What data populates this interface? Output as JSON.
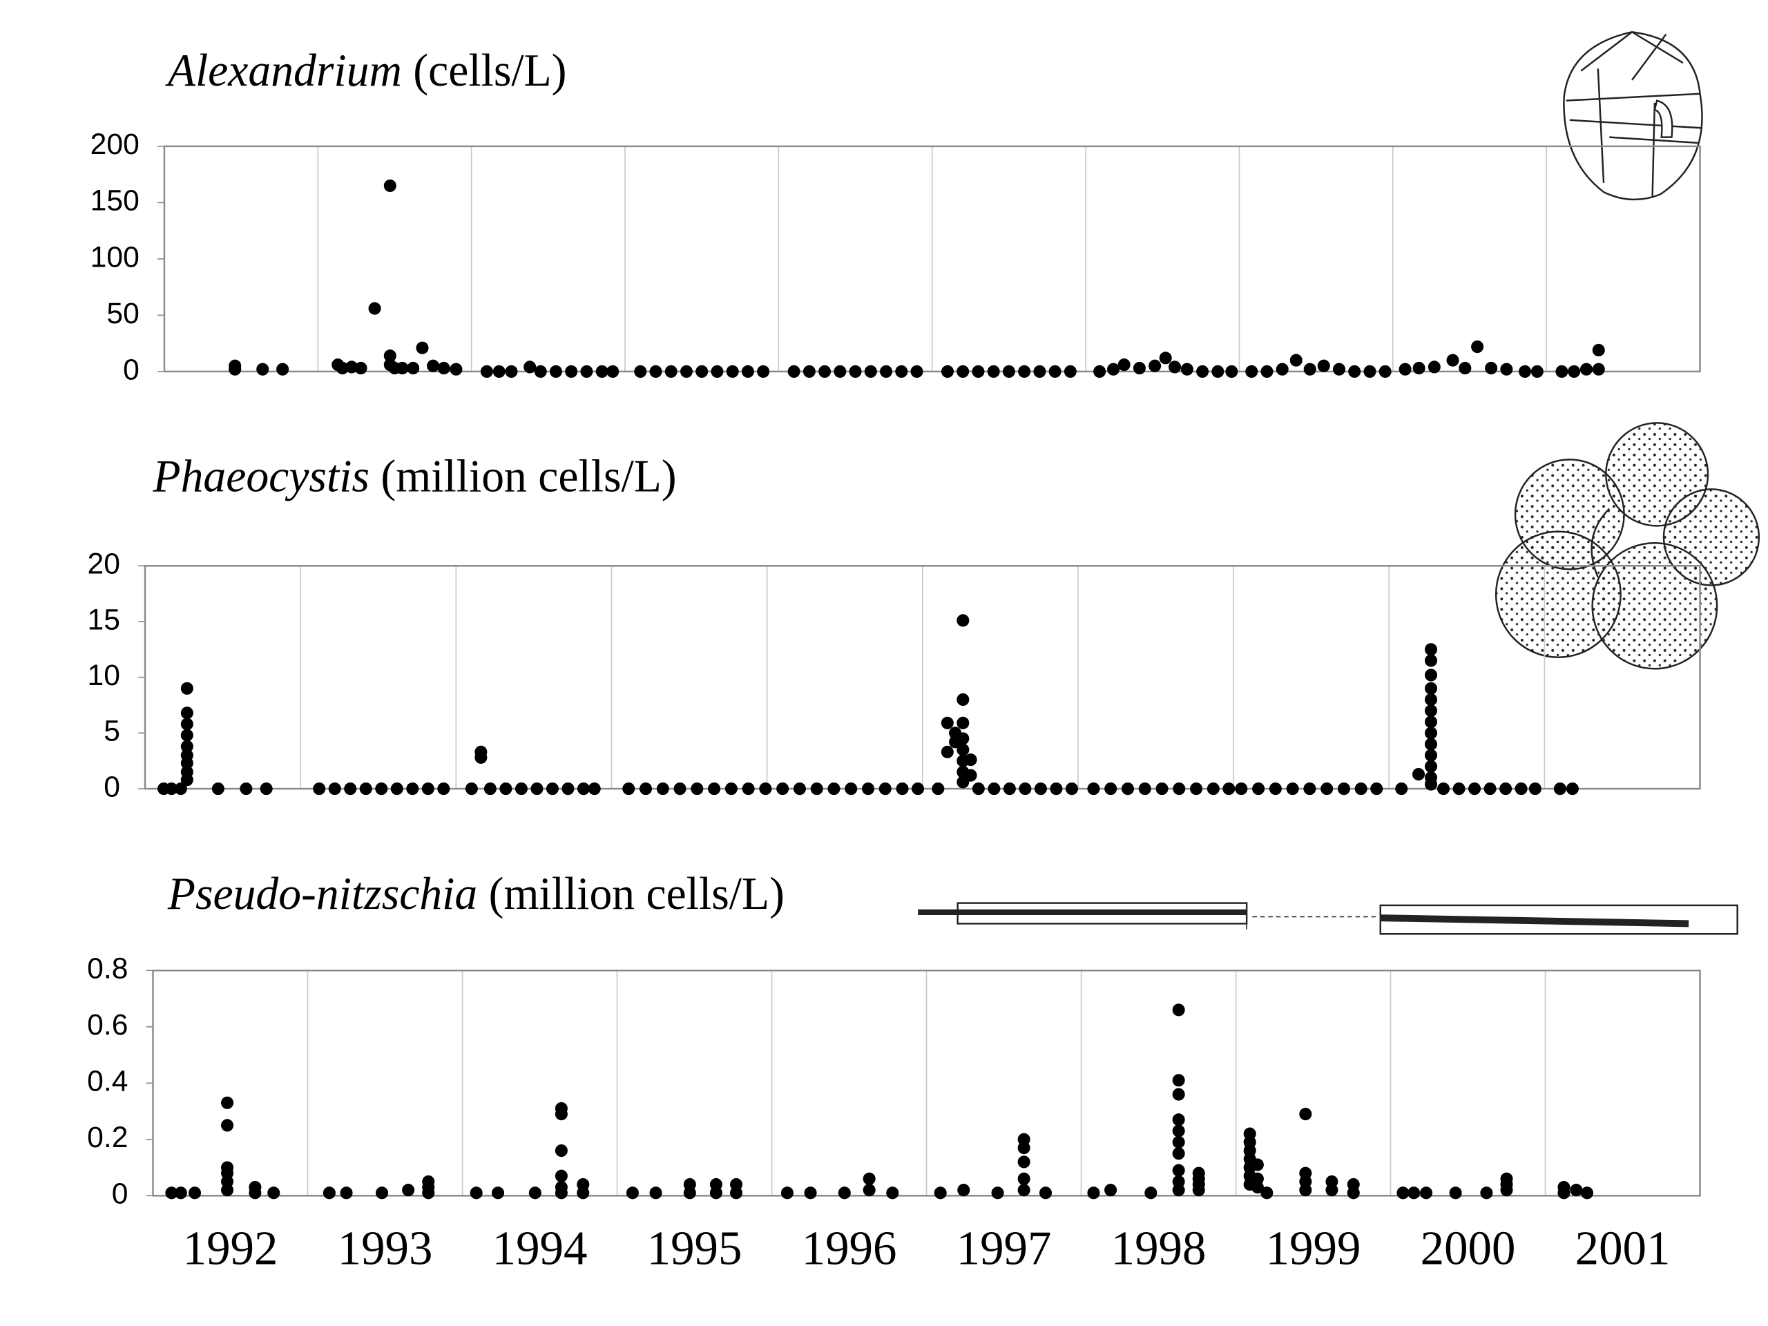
{
  "chart_data": [
    {
      "type": "scatter",
      "title": {
        "taxon": "Alexandrium",
        "unit": "(cells/L)"
      },
      "xlim": [
        1992,
        2002
      ],
      "xgrid": [
        1993,
        1994,
        1995,
        1996,
        1997,
        1998,
        1999,
        2000,
        2001
      ],
      "ylim": [
        0,
        200
      ],
      "yticks": [
        0,
        50,
        100,
        150,
        200
      ],
      "color": "#000000",
      "x": [
        1992.46,
        1992.46,
        1992.64,
        1992.77,
        1993.13,
        1993.16,
        1993.22,
        1993.28,
        1993.37,
        1993.47,
        1993.47,
        1993.47,
        1993.5,
        1993.55,
        1993.62,
        1993.68,
        1993.75,
        1993.82,
        1993.9,
        1994.1,
        1994.18,
        1994.26,
        1994.38,
        1994.45,
        1994.55,
        1994.65,
        1994.75,
        1994.85,
        1994.92,
        1995.1,
        1995.2,
        1995.3,
        1995.4,
        1995.5,
        1995.6,
        1995.7,
        1995.8,
        1995.9,
        1996.1,
        1996.2,
        1996.3,
        1996.4,
        1996.5,
        1996.6,
        1996.7,
        1996.8,
        1996.9,
        1997.1,
        1997.2,
        1997.3,
        1997.4,
        1997.5,
        1997.6,
        1997.7,
        1997.8,
        1997.9,
        1998.09,
        1998.18,
        1998.25,
        1998.35,
        1998.45,
        1998.52,
        1998.58,
        1998.66,
        1998.76,
        1998.86,
        1998.95,
        1999.08,
        1999.18,
        1999.28,
        1999.37,
        1999.46,
        1999.55,
        1999.65,
        1999.75,
        1999.85,
        1999.95,
        2000.08,
        2000.17,
        2000.27,
        2000.39,
        2000.47,
        2000.55,
        2000.64,
        2000.74,
        2000.86,
        2000.94,
        2001.1,
        2001.18,
        2001.26,
        2001.34,
        2001.34
      ],
      "values": [
        5,
        2,
        2,
        2,
        6,
        3,
        4,
        3,
        56,
        165,
        14,
        6,
        3,
        3,
        3,
        21,
        5,
        3,
        2,
        0,
        0,
        0,
        4,
        0,
        0,
        0,
        0,
        0,
        0,
        0,
        0,
        0,
        0,
        0,
        0,
        0,
        0,
        0,
        0,
        0,
        0,
        0,
        0,
        0,
        0,
        0,
        0,
        0,
        0,
        0,
        0,
        0,
        0,
        0,
        0,
        0,
        0,
        2,
        6,
        3,
        5,
        12,
        4,
        2,
        0,
        0,
        0,
        0,
        0,
        2,
        10,
        2,
        5,
        2,
        0,
        0,
        0,
        2,
        3,
        4,
        10,
        3,
        22,
        3,
        2,
        0,
        0,
        0,
        0,
        2,
        19,
        2
      ]
    },
    {
      "type": "scatter",
      "title": {
        "taxon": "Phaeocystis",
        "unit": "(million cells/L)"
      },
      "xlim": [
        1992,
        2002
      ],
      "xgrid": [
        1993,
        1994,
        1995,
        1996,
        1997,
        1998,
        1999,
        2000,
        2001
      ],
      "ylim": [
        0,
        20
      ],
      "yticks": [
        0,
        5,
        10,
        15,
        20
      ],
      "color": "#000000",
      "x": [
        1992.12,
        1992.17,
        1992.23,
        1992.27,
        1992.27,
        1992.27,
        1992.27,
        1992.27,
        1992.27,
        1992.27,
        1992.27,
        1992.27,
        1992.47,
        1992.65,
        1992.78,
        1993.12,
        1993.22,
        1993.32,
        1993.42,
        1993.52,
        1993.62,
        1993.72,
        1993.82,
        1993.92,
        1994.1,
        1994.16,
        1994.16,
        1994.22,
        1994.32,
        1994.42,
        1994.52,
        1994.62,
        1994.72,
        1994.82,
        1994.89,
        1995.11,
        1995.22,
        1995.33,
        1995.44,
        1995.55,
        1995.66,
        1995.77,
        1995.88,
        1995.99,
        1996.1,
        1996.21,
        1996.32,
        1996.43,
        1996.54,
        1996.65,
        1996.76,
        1996.87,
        1996.97,
        1997.1,
        1997.16,
        1997.16,
        1997.21,
        1997.21,
        1997.26,
        1997.26,
        1997.26,
        1997.26,
        1997.26,
        1997.26,
        1997.26,
        1997.26,
        1997.31,
        1997.31,
        1997.36,
        1997.46,
        1997.56,
        1997.66,
        1997.76,
        1997.86,
        1997.96,
        1998.1,
        1998.21,
        1998.32,
        1998.43,
        1998.54,
        1998.65,
        1998.76,
        1998.87,
        1998.97,
        1999.05,
        1999.16,
        1999.27,
        1999.38,
        1999.49,
        1999.6,
        1999.71,
        1999.82,
        1999.92,
        2000.08,
        2000.19,
        2000.27,
        2000.27,
        2000.27,
        2000.27,
        2000.27,
        2000.27,
        2000.27,
        2000.27,
        2000.27,
        2000.27,
        2000.27,
        2000.27,
        2000.27,
        2000.35,
        2000.45,
        2000.55,
        2000.65,
        2000.75,
        2000.85,
        2000.94,
        2001.1,
        2001.18
      ],
      "values": [
        0,
        0,
        0,
        9,
        6.8,
        5.8,
        4.8,
        3.8,
        3,
        2.3,
        1.5,
        0.8,
        0,
        0,
        0,
        0,
        0,
        0,
        0,
        0,
        0,
        0,
        0,
        0,
        0,
        3.3,
        2.8,
        0,
        0,
        0,
        0,
        0,
        0,
        0,
        0,
        0,
        0,
        0,
        0,
        0,
        0,
        0,
        0,
        0,
        0,
        0,
        0,
        0,
        0,
        0,
        0,
        0,
        0,
        0,
        5.9,
        3.3,
        5,
        4.2,
        15.1,
        8,
        5.9,
        4.5,
        3.5,
        2.5,
        1.5,
        0.6,
        2.6,
        1.2,
        0,
        0,
        0,
        0,
        0,
        0,
        0,
        0,
        0,
        0,
        0,
        0,
        0,
        0,
        0,
        0,
        0,
        0,
        0,
        0,
        0,
        0,
        0,
        0,
        0,
        0,
        1.3,
        12.5,
        11.5,
        10.2,
        9,
        8,
        7,
        6,
        5,
        4,
        3,
        2,
        1,
        0.4,
        0,
        0,
        0,
        0,
        0,
        0,
        0,
        0,
        0
      ]
    },
    {
      "type": "scatter",
      "title": {
        "taxon": "Pseudo-nitzschia",
        "unit": "(million cells/L)"
      },
      "xlim": [
        1992,
        2002
      ],
      "xgrid": [
        1993,
        1994,
        1995,
        1996,
        1997,
        1998,
        1999,
        2000,
        2001
      ],
      "xticks": [
        {
          "value": 1992.5,
          "label": "1992"
        },
        {
          "value": 1993.5,
          "label": "1993"
        },
        {
          "value": 1994.5,
          "label": "1994"
        },
        {
          "value": 1995.5,
          "label": "1995"
        },
        {
          "value": 1996.5,
          "label": "1996"
        },
        {
          "value": 1997.5,
          "label": "1997"
        },
        {
          "value": 1998.5,
          "label": "1998"
        },
        {
          "value": 1999.5,
          "label": "1999"
        },
        {
          "value": 2000.5,
          "label": "2000"
        },
        {
          "value": 2001.5,
          "label": "2001"
        }
      ],
      "ylim": [
        0,
        0.8
      ],
      "yticks": [
        0,
        0.2,
        0.4,
        0.6,
        0.8
      ],
      "color": "#000000",
      "x": [
        1992.12,
        1992.18,
        1992.27,
        1992.48,
        1992.48,
        1992.48,
        1992.48,
        1992.48,
        1992.48,
        1992.66,
        1992.66,
        1992.78,
        1993.14,
        1993.25,
        1993.48,
        1993.65,
        1993.78,
        1993.78,
        1993.78,
        1994.09,
        1994.23,
        1994.47,
        1994.64,
        1994.64,
        1994.64,
        1994.64,
        1994.64,
        1994.64,
        1994.78,
        1994.78,
        1995.1,
        1995.25,
        1995.47,
        1995.47,
        1995.64,
        1995.64,
        1995.77,
        1995.77,
        1996.1,
        1996.25,
        1996.47,
        1996.63,
        1996.63,
        1996.78,
        1997.09,
        1997.24,
        1997.46,
        1997.63,
        1997.63,
        1997.63,
        1997.63,
        1997.63,
        1997.77,
        1998.08,
        1998.19,
        1998.45,
        1998.63,
        1998.63,
        1998.63,
        1998.63,
        1998.63,
        1998.63,
        1998.63,
        1998.63,
        1998.63,
        1998.63,
        1998.76,
        1998.76,
        1998.76,
        1998.76,
        1999.09,
        1999.09,
        1999.09,
        1999.09,
        1999.09,
        1999.09,
        1999.09,
        1999.14,
        1999.14,
        1999.14,
        1999.2,
        1999.45,
        1999.45,
        1999.45,
        1999.45,
        1999.62,
        1999.62,
        1999.76,
        1999.76,
        2000.08,
        2000.15,
        2000.23,
        2000.42,
        2000.62,
        2000.75,
        2000.75,
        2000.75,
        2001.12,
        2001.12,
        2001.2,
        2001.27
      ],
      "values": [
        0.01,
        0.01,
        0.01,
        0.33,
        0.25,
        0.1,
        0.08,
        0.05,
        0.02,
        0.03,
        0.01,
        0.01,
        0.01,
        0.01,
        0.01,
        0.02,
        0.05,
        0.03,
        0.01,
        0.01,
        0.01,
        0.01,
        0.31,
        0.29,
        0.16,
        0.07,
        0.03,
        0.01,
        0.04,
        0.01,
        0.01,
        0.01,
        0.04,
        0.01,
        0.04,
        0.01,
        0.04,
        0.01,
        0.01,
        0.01,
        0.01,
        0.06,
        0.02,
        0.01,
        0.01,
        0.02,
        0.01,
        0.2,
        0.17,
        0.12,
        0.06,
        0.02,
        0.01,
        0.01,
        0.02,
        0.01,
        0.66,
        0.41,
        0.36,
        0.27,
        0.23,
        0.19,
        0.15,
        0.09,
        0.05,
        0.02,
        0.08,
        0.06,
        0.04,
        0.02,
        0.22,
        0.19,
        0.16,
        0.13,
        0.1,
        0.07,
        0.04,
        0.11,
        0.06,
        0.03,
        0.01,
        0.29,
        0.08,
        0.05,
        0.02,
        0.05,
        0.02,
        0.04,
        0.01,
        0.01,
        0.01,
        0.01,
        0.01,
        0.01,
        0.06,
        0.04,
        0.02,
        0.03,
        0.01,
        0.02,
        0.01
      ]
    }
  ]
}
